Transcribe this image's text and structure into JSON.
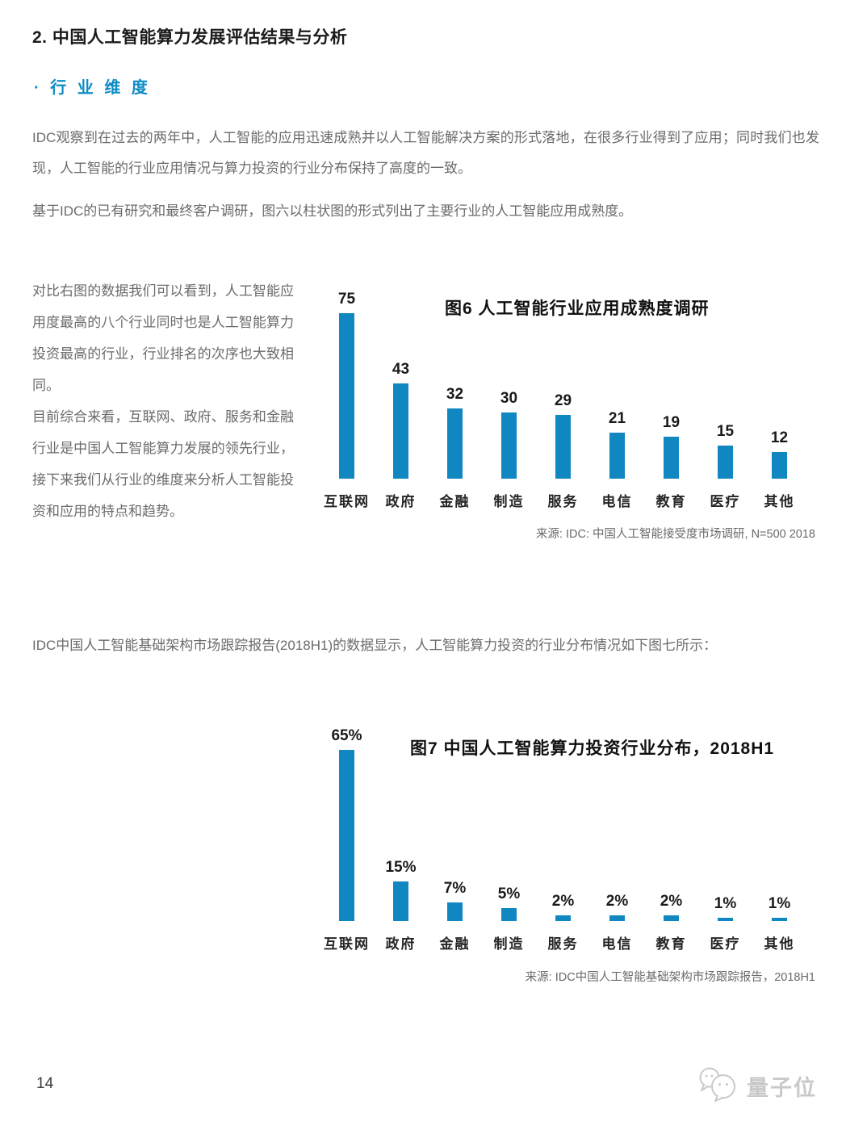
{
  "page": {
    "title": "2. 中国人工智能算力发展评估结果与分析",
    "section_heading": "· 行 业 维 度",
    "paragraphs": {
      "p1": "IDC观察到在过去的两年中，人工智能的应用迅速成熟并以人工智能解决方案的形式落地，在很多行业得到了应用；同时我们也发现，人工智能的行业应用情况与算力投资的行业分布保持了高度的一致。",
      "p2": "基于IDC的已有研究和最终客户调研，图六以柱状图的形式列出了主要行业的人工智能应用成熟度。",
      "p3": "对比右图的数据我们可以看到，人工智能应用度最高的八个行业同时也是人工智能算力投资最高的行业，行业排名的次序也大致相同。",
      "p4": "目前综合来看，互联网、政府、服务和金融行业是中国人工智能算力发展的领先行业，接下来我们从行业的维度来分析人工智能投资和应用的特点和趋势。",
      "p5": "IDC中国人工智能基础架构市场跟踪报告(2018H1)的数据显示，人工智能算力投资的行业分布情况如下图七所示："
    },
    "footer": {
      "page_number": "14",
      "watermark_text": "量子位"
    }
  },
  "colors": {
    "accent_blue": "#1187C1",
    "heading_blue": "#0D8CC6",
    "text_gray": "#6B6B6B",
    "watermark_gray": "#C9C9C9"
  },
  "chart_data": [
    {
      "type": "bar",
      "title": "图6 人工智能行业应用成熟度调研",
      "categories": [
        "互联网",
        "政府",
        "金融",
        "制造",
        "服务",
        "电信",
        "教育",
        "医疗",
        "其他"
      ],
      "values": [
        75,
        43,
        32,
        30,
        29,
        21,
        19,
        15,
        12
      ],
      "value_labels": [
        "75",
        "43",
        "32",
        "30",
        "29",
        "21",
        "19",
        "15",
        "12"
      ],
      "bar_color": "#1187C1",
      "xlabel": "",
      "ylabel": "",
      "ylim": [
        0,
        80
      ],
      "grid": false,
      "legend": "none",
      "source": "来源: IDC: 中国人工智能接受度市场调研, N=500  2018"
    },
    {
      "type": "bar",
      "title": "图7 中国人工智能算力投资行业分布，2018H1",
      "categories": [
        "互联网",
        "政府",
        "金融",
        "制造",
        "服务",
        "电信",
        "教育",
        "医疗",
        "其他"
      ],
      "values": [
        65,
        15,
        7,
        5,
        2,
        2,
        2,
        1,
        1
      ],
      "value_labels": [
        "65%",
        "15%",
        "7%",
        "5%",
        "2%",
        "2%",
        "2%",
        "1%",
        "1%"
      ],
      "unit": "%",
      "bar_color": "#1187C1",
      "xlabel": "",
      "ylabel": "",
      "ylim": [
        0,
        70
      ],
      "grid": false,
      "legend": "none",
      "source": "来源: IDC中国人工智能基础架构市场跟踪报告，2018H1"
    }
  ]
}
